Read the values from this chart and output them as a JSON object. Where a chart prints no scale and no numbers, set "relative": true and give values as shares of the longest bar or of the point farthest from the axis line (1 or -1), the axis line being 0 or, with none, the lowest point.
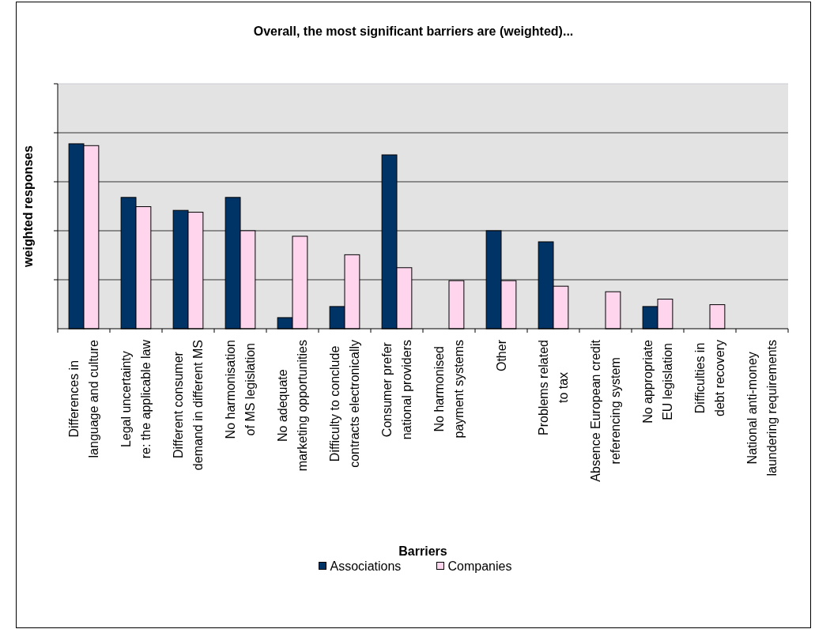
{
  "chart_data": {
    "type": "bar",
    "title": "Overall, the most significant barriers are (weighted)...",
    "xlabel": "Barriers",
    "ylabel": "weighted responses",
    "categories": [
      "Differences in\nlanguage and culture",
      "Legal uncertainty\nre: the applicable law",
      "Different consumer\ndemand in different MS",
      "No harmonisation\nof MS legislation",
      "No adequate\nmarketing opportunities",
      "Difficulty to conclude\ncontracts electronically",
      "Consumer prefer\nnational providers",
      "No harmonised\npayment systems",
      "Other",
      "Problems related\nto tax",
      "Absence European credit\nreferencing system",
      "No appropriate\nEU legislation",
      "Difficulties in\ndebt recovery",
      "National anti-money\nlaundering requirements"
    ],
    "series": [
      {
        "name": "Associations",
        "color": "#003366",
        "values": [
          1,
          0.71,
          0.64,
          0.71,
          0.06,
          0.12,
          0.94,
          null,
          0.53,
          0.47,
          null,
          0.12,
          null,
          null
        ]
      },
      {
        "name": "Companies",
        "color": "#ffd5ee",
        "values": [
          0.99,
          0.66,
          0.63,
          0.53,
          0.5,
          0.4,
          0.33,
          0.26,
          0.26,
          0.23,
          0.2,
          0.16,
          0.13,
          null
        ]
      }
    ],
    "relative": true,
    "grid": "y",
    "legend": "bottom"
  }
}
